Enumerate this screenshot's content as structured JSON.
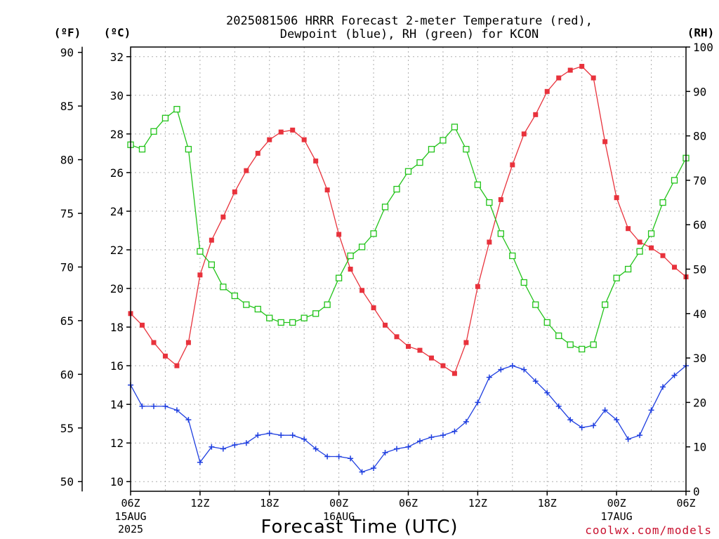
{
  "chart_data": {
    "type": "line",
    "title_line1": "2025081506 HRRR Forecast 2-meter Temperature (red),",
    "title_line2": "Dewpoint (blue), RH (green) for KCON",
    "xlabel": "Forecast Time (UTC)",
    "credit": "coolwx.com/models",
    "unit_labels": {
      "fahrenheit": "(ºF)",
      "celsius": "(ºC)",
      "rh": "(RH)"
    },
    "left_axis_c": {
      "ylim": [
        9.5,
        32.5
      ],
      "ticks": [
        "10",
        "12",
        "14",
        "16",
        "18",
        "20",
        "22",
        "24",
        "26",
        "28",
        "30",
        "32"
      ]
    },
    "left_axis_f": {
      "ticks": [
        "50",
        "55",
        "60",
        "65",
        "70",
        "75",
        "80",
        "85",
        "90"
      ]
    },
    "right_axis_rh": {
      "ylim": [
        0,
        100
      ],
      "ticks": [
        "0",
        "10",
        "20",
        "30",
        "40",
        "50",
        "60",
        "70",
        "80",
        "90",
        "100"
      ]
    },
    "x_axis": {
      "forecast_hours": [
        0,
        48
      ],
      "ticks": [
        {
          "hour": 0,
          "label": "06Z",
          "sub1": "15AUG",
          "sub2": "2025"
        },
        {
          "hour": 6,
          "label": "12Z",
          "sub1": "",
          "sub2": ""
        },
        {
          "hour": 12,
          "label": "18Z",
          "sub1": "",
          "sub2": ""
        },
        {
          "hour": 18,
          "label": "00Z",
          "sub1": "16AUG",
          "sub2": ""
        },
        {
          "hour": 24,
          "label": "06Z",
          "sub1": "",
          "sub2": ""
        },
        {
          "hour": 30,
          "label": "12Z",
          "sub1": "",
          "sub2": ""
        },
        {
          "hour": 36,
          "label": "18Z",
          "sub1": "",
          "sub2": ""
        },
        {
          "hour": 42,
          "label": "00Z",
          "sub1": "17AUG",
          "sub2": ""
        },
        {
          "hour": 48,
          "label": "06Z",
          "sub1": "",
          "sub2": ""
        }
      ]
    },
    "series": [
      {
        "name": "Temperature",
        "units": "C",
        "color": "#e8323c",
        "marker": "filled-square",
        "values": [
          18.7,
          18.1,
          17.2,
          16.5,
          16.0,
          17.2,
          20.7,
          22.5,
          23.7,
          25.0,
          26.1,
          27.0,
          27.7,
          28.1,
          28.2,
          27.7,
          26.6,
          25.1,
          22.8,
          21.0,
          19.9,
          19.0,
          18.1,
          17.5,
          17.0,
          16.8,
          16.4,
          16.0,
          15.6,
          17.2,
          20.1,
          22.4,
          24.6,
          26.4,
          28.0,
          29.0,
          30.2,
          30.9,
          31.3,
          31.5,
          30.9,
          27.6,
          24.7,
          23.1,
          22.4,
          22.1,
          21.7,
          21.1,
          20.6
        ]
      },
      {
        "name": "Dewpoint",
        "units": "C",
        "color": "#1f3fe0",
        "marker": "plus",
        "values": [
          15.0,
          13.9,
          13.9,
          13.9,
          13.7,
          13.2,
          11.0,
          11.8,
          11.7,
          11.9,
          12.0,
          12.4,
          12.5,
          12.4,
          12.4,
          12.2,
          11.7,
          11.3,
          11.3,
          11.2,
          10.5,
          10.7,
          11.5,
          11.7,
          11.8,
          12.1,
          12.3,
          12.4,
          12.6,
          13.1,
          14.1,
          15.4,
          15.8,
          16.0,
          15.8,
          15.2,
          14.6,
          13.9,
          13.2,
          12.8,
          12.9,
          13.7,
          13.2,
          12.2,
          12.4,
          13.7,
          14.9,
          15.5,
          16.0
        ]
      },
      {
        "name": "RH",
        "units": "%",
        "color": "#22c31a",
        "marker": "open-square",
        "values": [
          78,
          77,
          81,
          84,
          86,
          77,
          54,
          51,
          46,
          44,
          42,
          41,
          39,
          38,
          38,
          39,
          40,
          42,
          48,
          53,
          55,
          58,
          64,
          68,
          72,
          74,
          77,
          79,
          82,
          77,
          69,
          65,
          58,
          53,
          47,
          42,
          38,
          35,
          33,
          32,
          33,
          42,
          48,
          50,
          54,
          58,
          65,
          70,
          75
        ]
      }
    ]
  }
}
